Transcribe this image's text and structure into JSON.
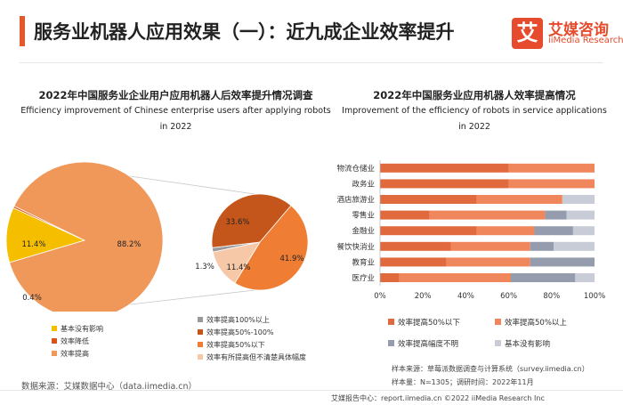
{
  "header": {
    "title": "服务业机器人应用效果（一）：近九成企业效率提升",
    "logo_mark": "艾",
    "logo_cn": "艾媒咨询",
    "logo_en": "iiMedia Research"
  },
  "left_chart": {
    "title_cn": "2022年中国服务业企业用户应用机器人后效率提升情况调查",
    "title_en_line1": "Efficiency improvement of Chinese enterprise users after applying robots",
    "title_en_line2": "in 2022"
  },
  "right_chart": {
    "title_cn": "2022年中国服务业应用机器人效率提高情况",
    "title_en_line1": "Improvement of the efficiency of robots in service applications",
    "title_en_line2": "in 2022"
  },
  "chart_data": [
    {
      "type": "pie",
      "name": "main",
      "slices": [
        {
          "label": "基本没有影响",
          "value": 11.4,
          "display": "11.4%",
          "color": "#f5bf00"
        },
        {
          "label": "效率降低",
          "value": 0.4,
          "display": "0.4%",
          "color": "#d9541a"
        },
        {
          "label": "效率提高",
          "value": 88.2,
          "display": "88.2%",
          "color": "#f0975a"
        }
      ]
    },
    {
      "type": "pie",
      "name": "breakdown of 效率提高",
      "slices": [
        {
          "label": "效率提高100%以上",
          "value": 1.3,
          "display": "1.3%",
          "color": "#9a9a9a"
        },
        {
          "label": "效率提高50%-100%",
          "value": 33.6,
          "display": "33.6%",
          "color": "#c4561c"
        },
        {
          "label": "效率提高50%以下",
          "value": 41.9,
          "display": "41.9%",
          "color": "#ef7e34"
        },
        {
          "label": "效率有所提高但不清楚具体幅度",
          "value": 11.4,
          "display": "11.4%",
          "color": "#f7c8a8"
        }
      ]
    },
    {
      "type": "bar",
      "orientation": "horizontal",
      "stacked": true,
      "categories": [
        "物流仓储业",
        "政务业",
        "酒店旅游业",
        "零售业",
        "金融业",
        "餐饮快消业",
        "教育业",
        "医疗业"
      ],
      "xlim": [
        0,
        100
      ],
      "xticks": [
        "0%",
        "20%",
        "40%",
        "60%",
        "80%",
        "100%"
      ],
      "series": [
        {
          "name": "效率提高50%以下",
          "color": "#e06a3d",
          "values": [
            60,
            60,
            45,
            23,
            45,
            33,
            31,
            9
          ]
        },
        {
          "name": "效率提高50%以上",
          "color": "#f0875c",
          "values": [
            40,
            40,
            40,
            54,
            27,
            37,
            39,
            52
          ]
        },
        {
          "name": "效率提高幅度不明",
          "color": "#949cae",
          "values": [
            0,
            0,
            0,
            10,
            18,
            11,
            30,
            30
          ]
        },
        {
          "name": "基本没有影响",
          "color": "#c7ccd6",
          "values": [
            0,
            0,
            15,
            13,
            10,
            19,
            0,
            9
          ]
        }
      ]
    }
  ],
  "footer": {
    "data_source": "数据来源：艾媒数据中心（data.iimedia.cn）",
    "sample_source": "样本来源：草莓派数据调查与计算系统（survey.iimedia.cn）",
    "sample_size": "样本量：N=1305；调研时间：2022年11月",
    "copyright": "艾媒报告中心：report.iimedia.cn   ©2022  iiMedia Research  Inc"
  }
}
